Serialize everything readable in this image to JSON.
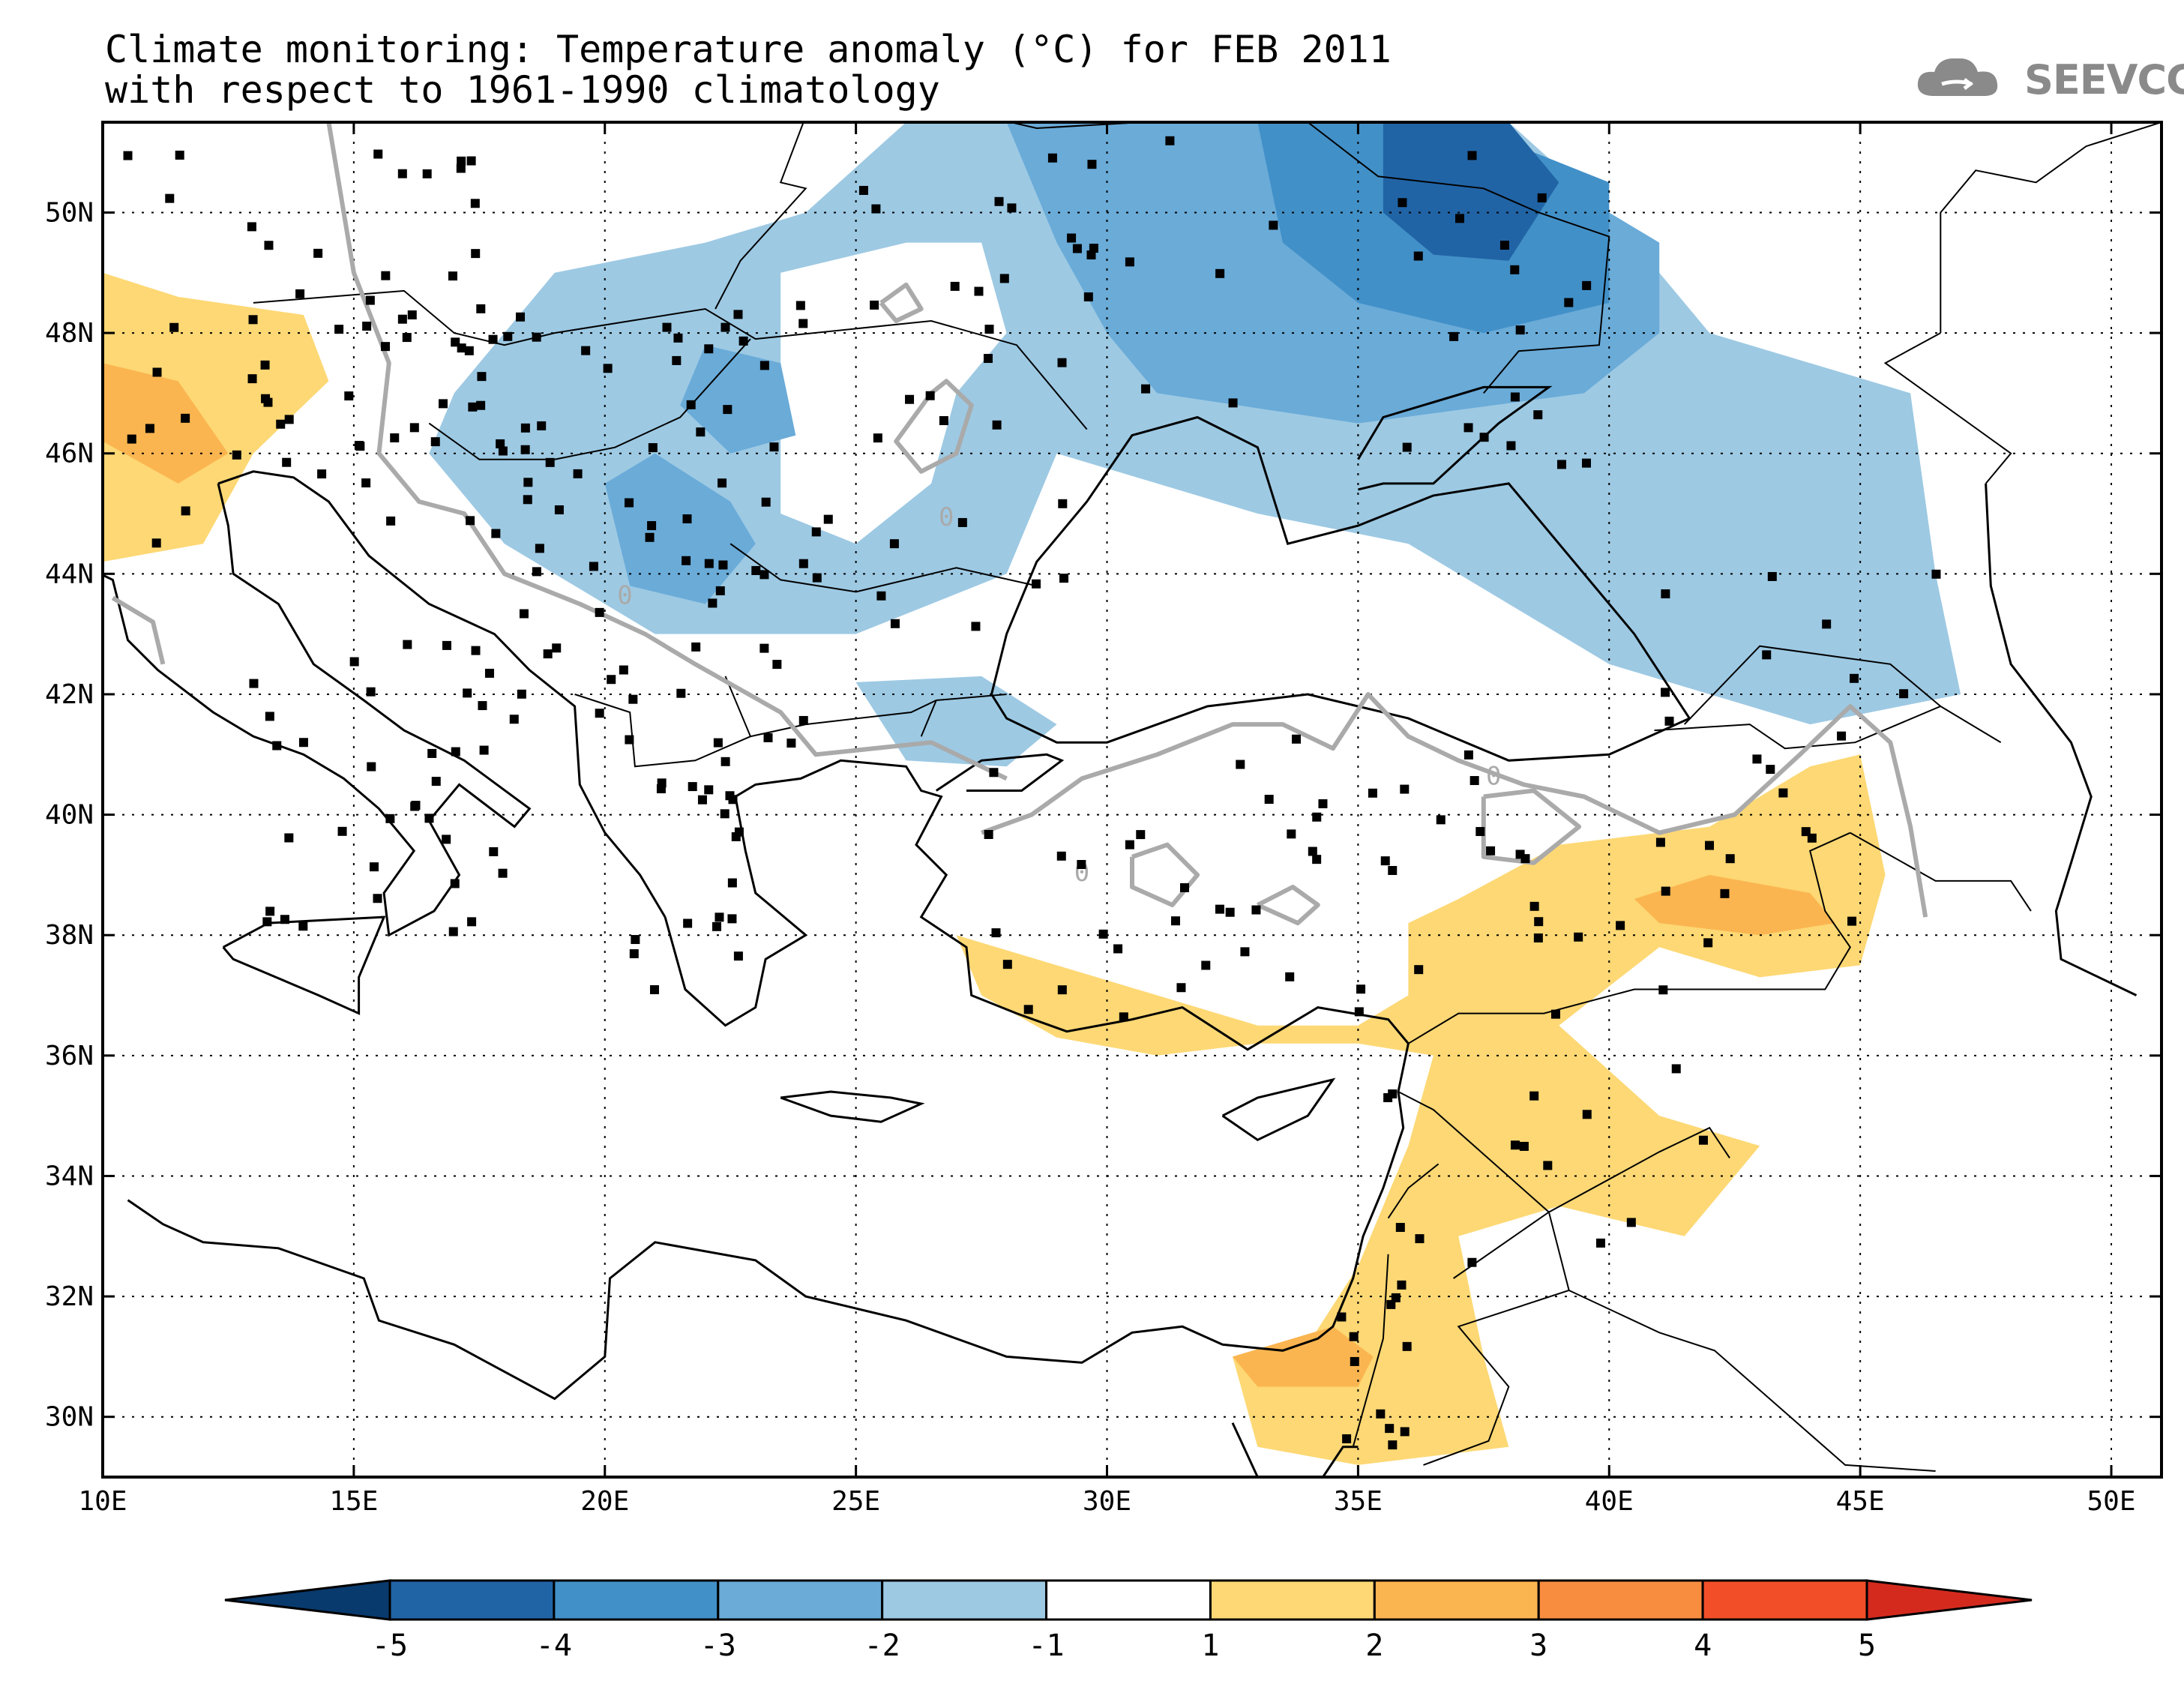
{
  "title": {
    "line1": "Climate monitoring: Temperature anomaly (°C) for FEB 2011",
    "line2": "with respect to 1961-1990 climatology"
  },
  "logo": {
    "icon": "cloud-icon",
    "text": "SEEVCCC",
    "color": "#8a8a8a"
  },
  "map": {
    "lon_range": [
      10,
      51
    ],
    "lat_range": [
      29,
      51.5
    ],
    "x_ticks": [
      {
        "lon": 10,
        "label": "10E"
      },
      {
        "lon": 15,
        "label": "15E"
      },
      {
        "lon": 20,
        "label": "20E"
      },
      {
        "lon": 25,
        "label": "25E"
      },
      {
        "lon": 30,
        "label": "30E"
      },
      {
        "lon": 35,
        "label": "35E"
      },
      {
        "lon": 40,
        "label": "40E"
      },
      {
        "lon": 45,
        "label": "45E"
      },
      {
        "lon": 50,
        "label": "50E"
      }
    ],
    "y_ticks": [
      {
        "lat": 30,
        "label": "30N"
      },
      {
        "lat": 32,
        "label": "32N"
      },
      {
        "lat": 34,
        "label": "34N"
      },
      {
        "lat": 36,
        "label": "36N"
      },
      {
        "lat": 38,
        "label": "38N"
      },
      {
        "lat": 40,
        "label": "40N"
      },
      {
        "lat": 42,
        "label": "42N"
      },
      {
        "lat": 44,
        "label": "44N"
      },
      {
        "lat": 46,
        "label": "46N"
      },
      {
        "lat": 48,
        "label": "48N"
      },
      {
        "lat": 50,
        "label": "50N"
      }
    ],
    "gridlines": "dotted",
    "contour_label": "0",
    "contour_color": "#aaaaaa"
  },
  "colorbar": {
    "labels": [
      "-5",
      "-4",
      "-3",
      "-2",
      "-1",
      "1",
      "2",
      "3",
      "4",
      "5"
    ],
    "colors": {
      "under": "#083a6e",
      "bins": [
        "#2164a6",
        "#4290c8",
        "#6aabd8",
        "#9dc9e3",
        "#ffffff",
        "#fdd874",
        "#fbb550",
        "#f88d40",
        "#f24f28"
      ],
      "over": "#d42a1e"
    }
  },
  "chart_data": {
    "type": "heatmap",
    "title": "Climate monitoring: Temperature anomaly (°C) for FEB 2011",
    "subtitle": "with respect to 1961-1990 climatology",
    "xlim": [
      10,
      51
    ],
    "ylim": [
      29,
      51.5
    ],
    "levels": [
      -5,
      -4,
      -3,
      -2,
      -1,
      1,
      2,
      3,
      4,
      5
    ],
    "regions": [
      {
        "name": "",
        "class": "-2 to -1",
        "polygon": [
          [
            17,
            47
          ],
          [
            19,
            49
          ],
          [
            22,
            49.5
          ],
          [
            24,
            50
          ],
          [
            26,
            51.5
          ],
          [
            38,
            51.5
          ],
          [
            40,
            50
          ],
          [
            42,
            48
          ],
          [
            46,
            47
          ],
          [
            46.5,
            44
          ],
          [
            47,
            42
          ],
          [
            44,
            41.5
          ],
          [
            40,
            42.5
          ],
          [
            36,
            44.5
          ],
          [
            33,
            45
          ],
          [
            29,
            46
          ],
          [
            28,
            44
          ],
          [
            25,
            43
          ],
          [
            21,
            43
          ],
          [
            18,
            44.5
          ],
          [
            16.5,
            46
          ]
        ]
      },
      {
        "name": "",
        "class": "-1 to 1",
        "polygon": [
          [
            23.5,
            49
          ],
          [
            26,
            49.5
          ],
          [
            27.5,
            49.5
          ],
          [
            28,
            48
          ],
          [
            27,
            47
          ],
          [
            26.5,
            45.5
          ],
          [
            25,
            44.5
          ],
          [
            23.5,
            45
          ],
          [
            23.5,
            47
          ]
        ]
      },
      {
        "name": "",
        "class": "-3 to -2",
        "polygon": [
          [
            28,
            51.5
          ],
          [
            35,
            51.5
          ],
          [
            39,
            50.5
          ],
          [
            41,
            49.5
          ],
          [
            41,
            48
          ],
          [
            39.5,
            47
          ],
          [
            35,
            46.5
          ],
          [
            31,
            47
          ],
          [
            30,
            48
          ],
          [
            29,
            49.5
          ]
        ]
      },
      {
        "name": "",
        "class": "-4 to -3",
        "polygon": [
          [
            33,
            51.5
          ],
          [
            37,
            51.5
          ],
          [
            40,
            50.5
          ],
          [
            40,
            48.5
          ],
          [
            37.5,
            48
          ],
          [
            35,
            48.5
          ],
          [
            33.5,
            49.5
          ]
        ]
      },
      {
        "name": "",
        "class": "-5 to -4",
        "polygon": [
          [
            35.5,
            51.5
          ],
          [
            38,
            51.5
          ],
          [
            39,
            50.5
          ],
          [
            38,
            49.2
          ],
          [
            36.5,
            49.3
          ],
          [
            35.5,
            50
          ]
        ]
      },
      {
        "name": "",
        "class": "-3 to -2",
        "polygon": [
          [
            20,
            45.5
          ],
          [
            21,
            46
          ],
          [
            22.5,
            45.2
          ],
          [
            23,
            44.5
          ],
          [
            22,
            43.5
          ],
          [
            20.5,
            43.8
          ]
        ]
      },
      {
        "name": "",
        "class": "-3 to -2",
        "polygon": [
          [
            22,
            47.8
          ],
          [
            23.5,
            47.5
          ],
          [
            23.8,
            46.3
          ],
          [
            22.5,
            46
          ],
          [
            21.5,
            46.8
          ]
        ]
      },
      {
        "name": "",
        "class": "1 to 2",
        "polygon": [
          [
            10,
            49
          ],
          [
            11.5,
            48.6
          ],
          [
            14,
            48.3
          ],
          [
            14.5,
            47.2
          ],
          [
            13,
            46
          ],
          [
            12,
            44.5
          ],
          [
            10,
            44.2
          ]
        ]
      },
      {
        "name": "",
        "class": "2 to 3",
        "polygon": [
          [
            10,
            47.5
          ],
          [
            11.5,
            47.2
          ],
          [
            12.5,
            46
          ],
          [
            11.5,
            45.5
          ],
          [
            10,
            46.2
          ]
        ]
      },
      {
        "name": "",
        "class": "1 to 2",
        "polygon": [
          [
            27,
            38
          ],
          [
            29,
            37.5
          ],
          [
            31,
            37
          ],
          [
            33,
            36.5
          ],
          [
            35,
            36.5
          ],
          [
            36,
            37
          ],
          [
            36,
            38.2
          ],
          [
            37,
            38.6
          ],
          [
            39,
            39.5
          ],
          [
            42,
            39.8
          ],
          [
            44,
            40.8
          ],
          [
            45,
            41
          ],
          [
            45.5,
            39
          ],
          [
            45,
            37.5
          ],
          [
            43,
            37.3
          ],
          [
            41,
            37.8
          ],
          [
            39,
            36.5
          ],
          [
            41,
            35
          ],
          [
            43,
            34.5
          ],
          [
            41.5,
            33
          ],
          [
            39,
            33.5
          ],
          [
            37,
            33
          ],
          [
            37.5,
            31
          ],
          [
            38,
            29.5
          ],
          [
            35,
            29.2
          ],
          [
            33,
            29.5
          ],
          [
            32.5,
            31
          ],
          [
            34,
            31.2
          ],
          [
            35,
            32.5
          ],
          [
            36,
            34.5
          ],
          [
            36.5,
            36
          ],
          [
            35,
            36.2
          ],
          [
            33,
            36.2
          ],
          [
            31,
            36
          ],
          [
            29,
            36.3
          ],
          [
            27.5,
            37
          ]
        ]
      },
      {
        "name": "",
        "class": "2 to 3",
        "polygon": [
          [
            40.5,
            38.6
          ],
          [
            42,
            39
          ],
          [
            44,
            38.7
          ],
          [
            44.5,
            38.2
          ],
          [
            43,
            38
          ],
          [
            41,
            38.2
          ]
        ]
      },
      {
        "name": "",
        "class": "2 to 3",
        "polygon": [
          [
            32.5,
            31
          ],
          [
            34.5,
            31.5
          ],
          [
            35.3,
            31
          ],
          [
            35,
            30.5
          ],
          [
            33,
            30.5
          ]
        ]
      },
      {
        "name": "",
        "class": "-2 to -1",
        "polygon": [
          [
            25,
            42.2
          ],
          [
            27.5,
            42.3
          ],
          [
            29,
            41.5
          ],
          [
            28,
            40.8
          ],
          [
            26,
            40.9
          ]
        ]
      }
    ],
    "contour_zero_label": "0",
    "station_count_approx": 300,
    "colorbar_labels": [
      "-5",
      "-4",
      "-3",
      "-2",
      "-1",
      "1",
      "2",
      "3",
      "4",
      "5"
    ]
  }
}
